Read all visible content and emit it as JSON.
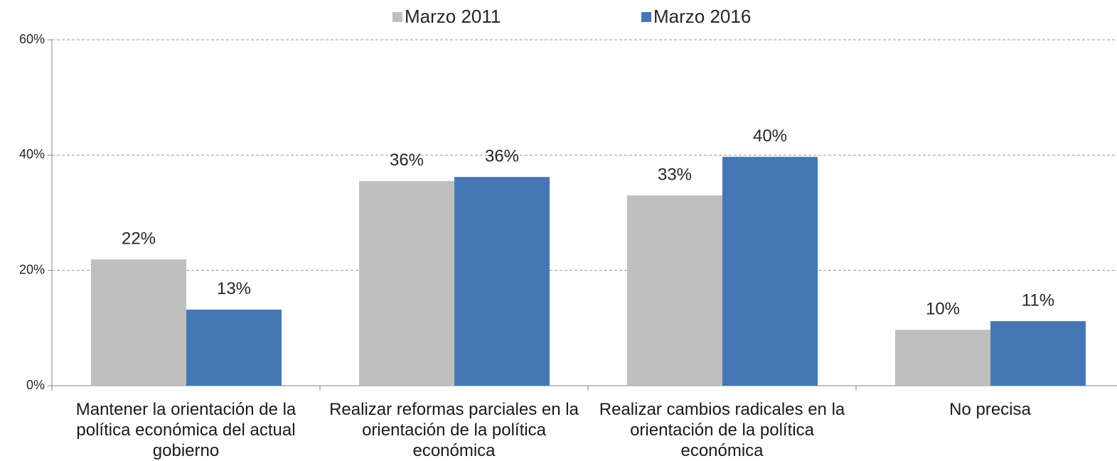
{
  "chart_data": {
    "type": "bar",
    "categories": [
      "Mantener la orientación de la política económica del actual gobierno",
      "Realizar reformas parciales en la orientación de la política económica",
      "Realizar cambios radicales en la orientación de la política económica",
      "No precisa"
    ],
    "series": [
      {
        "name": "Marzo 2011",
        "color": "#bfbfbf",
        "values": [
          21.9,
          35.5,
          33.0,
          9.7
        ],
        "value_labels": [
          "22%",
          "36%",
          "33%",
          "10%"
        ]
      },
      {
        "name": "Marzo 2016",
        "color": "#4677b4",
        "values": [
          13.2,
          36.2,
          39.7,
          11.2
        ],
        "value_labels": [
          "13%",
          "36%",
          "40%",
          "11%"
        ]
      }
    ],
    "ylim": [
      0,
      60
    ],
    "yticks": [
      {
        "value": 0,
        "label": "0%"
      },
      {
        "value": 20,
        "label": "20%"
      },
      {
        "value": 40,
        "label": "40%"
      },
      {
        "value": 60,
        "label": "60%"
      }
    ],
    "grid": true,
    "legend": "top"
  }
}
